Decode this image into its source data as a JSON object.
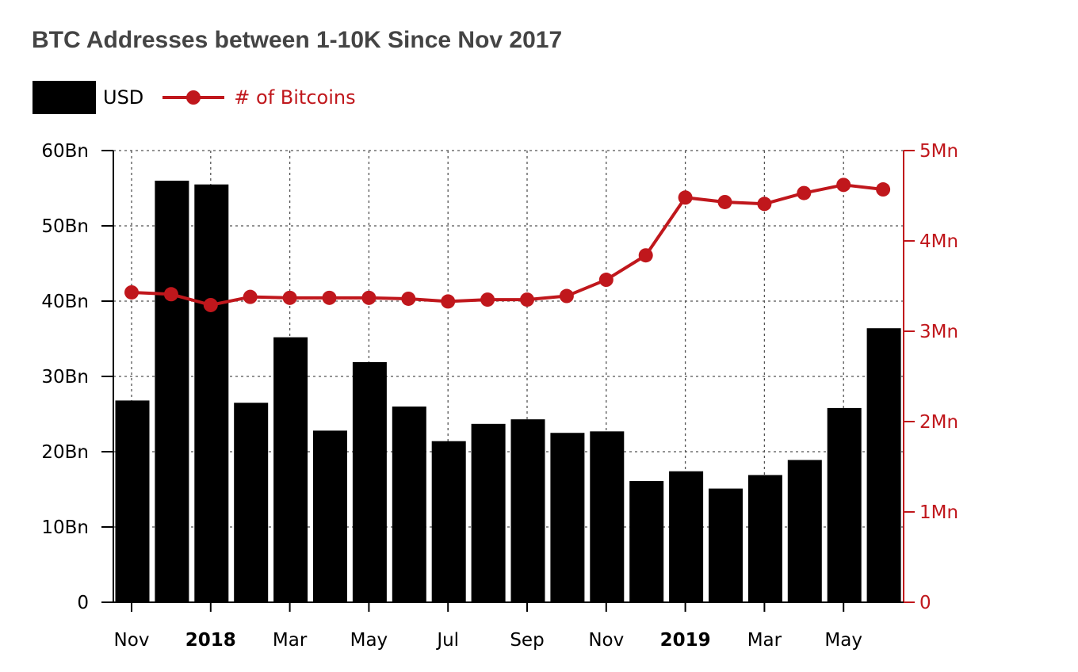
{
  "title": "BTC Addresses between 1-10K Since Nov 2017",
  "legend": {
    "usd_label": "USD",
    "btc_label": "# of Bitcoins"
  },
  "colors": {
    "bars": "#000000",
    "line": "#c0171c",
    "grid": "#555555",
    "title": "#444444"
  },
  "chart_data": {
    "type": "bar",
    "categories": [
      "Nov 2017",
      "Dec 2017",
      "Jan 2018",
      "Feb 2018",
      "Mar 2018",
      "Apr 2018",
      "May 2018",
      "Jun 2018",
      "Jul 2018",
      "Aug 2018",
      "Sep 2018",
      "Oct 2018",
      "Nov 2018",
      "Dec 2018",
      "Jan 2019",
      "Feb 2019",
      "Mar 2019",
      "Apr 2019",
      "May 2019",
      "Jun 2019"
    ],
    "series": [
      {
        "name": "USD",
        "type": "bar",
        "axis": "left",
        "values": [
          26.8,
          56.0,
          55.5,
          26.5,
          35.2,
          22.8,
          31.9,
          26.0,
          21.4,
          23.7,
          24.3,
          22.5,
          22.7,
          16.1,
          17.4,
          15.1,
          16.9,
          18.9,
          25.8,
          36.4
        ]
      },
      {
        "name": "# of Bitcoins",
        "type": "line",
        "axis": "right",
        "values": [
          3.43,
          3.41,
          3.29,
          3.38,
          3.37,
          3.37,
          3.37,
          3.36,
          3.33,
          3.35,
          3.35,
          3.39,
          3.57,
          3.84,
          4.48,
          4.43,
          4.41,
          4.53,
          4.62,
          4.57
        ]
      }
    ],
    "y_left": {
      "min": 0,
      "max": 60,
      "ticks": [
        "0",
        "10Bn",
        "20Bn",
        "30Bn",
        "40Bn",
        "50Bn",
        "60Bn"
      ]
    },
    "y_right": {
      "min": 0,
      "max": 5,
      "ticks": [
        "0",
        "1Mn",
        "2Mn",
        "3Mn",
        "4Mn",
        "5Mn"
      ]
    },
    "x_ticks": [
      {
        "label": "Nov",
        "index": 0,
        "bold": false
      },
      {
        "label": "2018",
        "index": 2,
        "bold": true
      },
      {
        "label": "Mar",
        "index": 4,
        "bold": false
      },
      {
        "label": "May",
        "index": 6,
        "bold": false
      },
      {
        "label": "Jul",
        "index": 8,
        "bold": false
      },
      {
        "label": "Sep",
        "index": 10,
        "bold": false
      },
      {
        "label": "Nov",
        "index": 12,
        "bold": false
      },
      {
        "label": "2019",
        "index": 14,
        "bold": true
      },
      {
        "label": "Mar",
        "index": 16,
        "bold": false
      },
      {
        "label": "May",
        "index": 18,
        "bold": false
      }
    ],
    "grid": true,
    "legend_position": "top-left"
  }
}
